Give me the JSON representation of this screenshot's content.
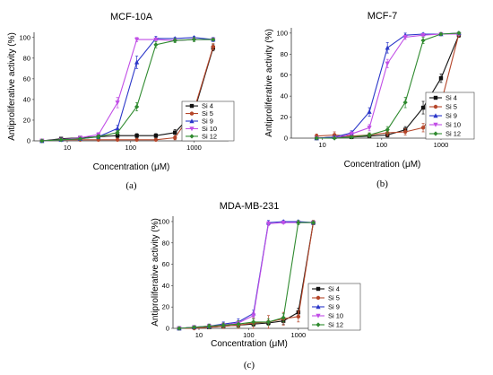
{
  "colors": {
    "Si 4": "#111111",
    "Si 5": "#b5462a",
    "Si 9": "#2b37c9",
    "Si 10": "#c14ee6",
    "Si 12": "#2f8a2f"
  },
  "chart_data": [
    {
      "type": "line",
      "panel_label": "(a)",
      "title": "MCF-10A",
      "xlabel": "Concentration (μM)",
      "ylabel": "Antiproliferative activity (%)",
      "x_scale": "log",
      "xlim": [
        3,
        3500
      ],
      "ylim": [
        0,
        105
      ],
      "x_tick_labels": [
        {
          "value": 10,
          "label": "10"
        },
        {
          "value": 100,
          "label": "100"
        },
        {
          "value": 1000,
          "label": "1000"
        }
      ],
      "y_ticks": [
        0,
        20,
        40,
        60,
        80,
        100
      ],
      "legend": "right",
      "series": [
        {
          "name": "Si 4",
          "x": [
            4,
            8,
            16,
            31,
            62,
            125,
            250,
            500,
            1000,
            2000
          ],
          "y": [
            0,
            2,
            3,
            4,
            5,
            5,
            5,
            8,
            28,
            90
          ],
          "err": [
            1,
            1,
            1,
            2,
            2,
            2,
            2,
            3,
            4,
            3
          ]
        },
        {
          "name": "Si 5",
          "x": [
            4,
            8,
            16,
            31,
            62,
            125,
            250,
            500,
            1000,
            2000
          ],
          "y": [
            0,
            1,
            1,
            1,
            1,
            1,
            1,
            3,
            30,
            91
          ],
          "err": [
            1,
            1,
            1,
            1,
            1,
            1,
            1,
            2,
            5,
            3
          ]
        },
        {
          "name": "Si 9",
          "x": [
            4,
            8,
            16,
            31,
            62,
            125,
            250,
            500,
            1000,
            2000
          ],
          "y": [
            0,
            1,
            2,
            4,
            12,
            76,
            99,
            99,
            100,
            98
          ],
          "err": [
            1,
            1,
            1,
            2,
            3,
            6,
            2,
            1,
            1,
            2
          ]
        },
        {
          "name": "Si 10",
          "x": [
            4,
            8,
            16,
            31,
            62,
            125,
            250,
            500,
            1000,
            2000
          ],
          "y": [
            0,
            1,
            3,
            6,
            37,
            98,
            98,
            97,
            98,
            98
          ],
          "err": [
            1,
            1,
            1,
            2,
            5,
            2,
            1,
            1,
            1,
            1
          ]
        },
        {
          "name": "Si 12",
          "x": [
            4,
            8,
            16,
            31,
            62,
            125,
            250,
            500,
            1000,
            2000
          ],
          "y": [
            0,
            1,
            2,
            4,
            8,
            33,
            93,
            97,
            98,
            98
          ],
          "err": [
            1,
            1,
            1,
            2,
            2,
            4,
            3,
            2,
            2,
            1
          ]
        }
      ]
    },
    {
      "type": "line",
      "panel_label": "(b)",
      "title": "MCF-7",
      "xlabel": "Concentration (μM)",
      "ylabel": "Antiproliferative activity (%)",
      "x_scale": "log",
      "xlim": [
        3,
        3500
      ],
      "ylim": [
        0,
        105
      ],
      "x_tick_labels": [
        {
          "value": 10,
          "label": "10"
        },
        {
          "value": 100,
          "label": "100"
        },
        {
          "value": 1000,
          "label": "1000"
        }
      ],
      "y_ticks": [
        0,
        20,
        40,
        60,
        80,
        100
      ],
      "legend": "right",
      "series": [
        {
          "name": "Si 4",
          "x": [
            8,
            16,
            31,
            62,
            125,
            250,
            500,
            1000,
            2000
          ],
          "y": [
            0,
            1,
            1,
            2,
            3,
            8,
            29,
            57,
            98
          ],
          "err": [
            1,
            1,
            1,
            1,
            2,
            3,
            6,
            4,
            2
          ]
        },
        {
          "name": "Si 5",
          "x": [
            8,
            16,
            31,
            62,
            125,
            250,
            500,
            1000,
            2000
          ],
          "y": [
            2,
            3,
            2,
            3,
            5,
            6,
            10,
            33,
            99
          ],
          "err": [
            2,
            3,
            2,
            2,
            3,
            3,
            4,
            4,
            2
          ]
        },
        {
          "name": "Si 9",
          "x": [
            8,
            16,
            31,
            62,
            125,
            250,
            500,
            1000,
            2000
          ],
          "y": [
            0,
            1,
            5,
            25,
            86,
            98,
            99,
            99,
            100
          ],
          "err": [
            1,
            1,
            2,
            4,
            5,
            2,
            1,
            1,
            1
          ]
        },
        {
          "name": "Si 10",
          "x": [
            8,
            16,
            31,
            62,
            125,
            250,
            500,
            1000,
            2000
          ],
          "y": [
            0,
            0,
            4,
            10,
            71,
            96,
            98,
            99,
            99
          ],
          "err": [
            1,
            1,
            2,
            3,
            4,
            2,
            1,
            1,
            1
          ]
        },
        {
          "name": "Si 12",
          "x": [
            8,
            16,
            31,
            62,
            125,
            250,
            500,
            1000,
            2000
          ],
          "y": [
            0,
            0,
            1,
            3,
            8,
            34,
            93,
            99,
            100
          ],
          "err": [
            1,
            1,
            1,
            2,
            3,
            5,
            3,
            1,
            1
          ]
        }
      ]
    },
    {
      "type": "line",
      "panel_label": "(c)",
      "title": "MDA-MB-231",
      "xlabel": "Concentration (μM)",
      "ylabel": "Antiproliferative activity (%)",
      "x_scale": "log",
      "xlim": [
        3,
        3500
      ],
      "ylim": [
        0,
        105
      ],
      "x_tick_labels": [
        {
          "value": 10,
          "label": "10"
        },
        {
          "value": 100,
          "label": "100"
        },
        {
          "value": 1000,
          "label": "1000"
        }
      ],
      "y_ticks": [
        0,
        20,
        40,
        60,
        80,
        100
      ],
      "legend": "right",
      "series": [
        {
          "name": "Si 4",
          "x": [
            4,
            8,
            16,
            31,
            62,
            125,
            250,
            500,
            1000,
            2000
          ],
          "y": [
            0,
            1,
            1,
            2,
            3,
            4,
            5,
            7,
            15,
            99
          ],
          "err": [
            1,
            1,
            1,
            2,
            2,
            2,
            2,
            3,
            4,
            2
          ]
        },
        {
          "name": "Si 5",
          "x": [
            4,
            8,
            16,
            31,
            62,
            125,
            250,
            500,
            1000,
            2000
          ],
          "y": [
            0,
            0,
            1,
            2,
            3,
            5,
            6,
            9,
            11,
            99
          ],
          "err": [
            1,
            1,
            2,
            3,
            4,
            5,
            6,
            6,
            5,
            2
          ]
        },
        {
          "name": "Si 9",
          "x": [
            4,
            8,
            16,
            31,
            62,
            125,
            250,
            500,
            1000,
            2000
          ],
          "y": [
            0,
            1,
            2,
            4,
            6,
            14,
            99,
            100,
            100,
            99
          ],
          "err": [
            1,
            1,
            2,
            2,
            3,
            3,
            2,
            1,
            1,
            1
          ]
        },
        {
          "name": "Si 10",
          "x": [
            4,
            8,
            16,
            31,
            62,
            125,
            250,
            500,
            1000,
            2000
          ],
          "y": [
            0,
            1,
            2,
            3,
            5,
            12,
            98,
            99,
            99,
            99
          ],
          "err": [
            1,
            1,
            2,
            2,
            2,
            3,
            2,
            1,
            1,
            1
          ]
        },
        {
          "name": "Si 12",
          "x": [
            4,
            8,
            16,
            31,
            62,
            125,
            250,
            500,
            1000,
            2000
          ],
          "y": [
            0,
            1,
            2,
            3,
            4,
            6,
            6,
            10,
            99,
            99
          ],
          "err": [
            1,
            1,
            2,
            2,
            3,
            3,
            3,
            4,
            2,
            1
          ]
        }
      ]
    }
  ]
}
